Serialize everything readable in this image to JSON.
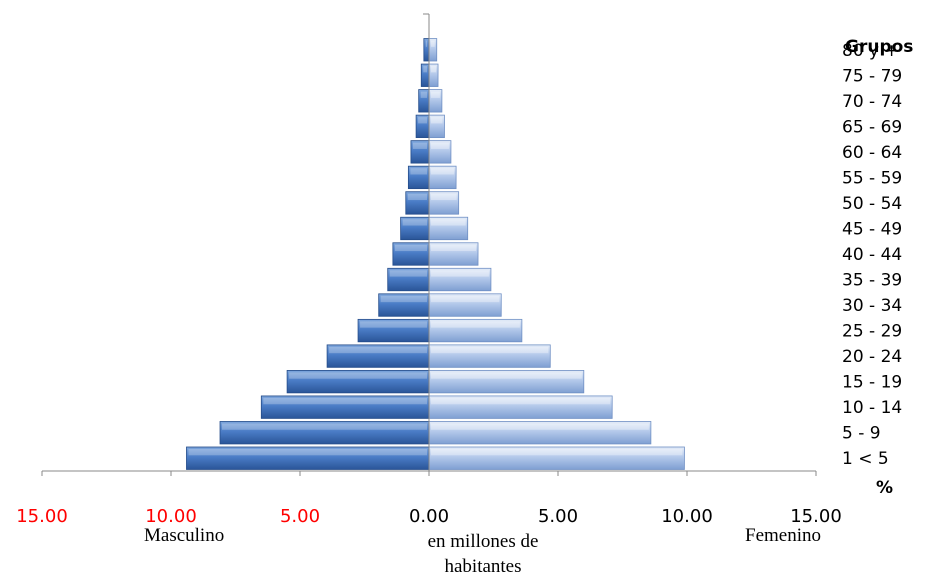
{
  "chart_data": {
    "type": "bar",
    "orientation": "horizontal",
    "categories": [
      "1 < 5",
      "5 - 9",
      "10 - 14",
      "15 - 19",
      "20 - 24",
      "25 - 29",
      "30 - 34",
      "35 - 39",
      "40 - 44",
      "45 - 49",
      "50 - 54",
      "55 - 59",
      "60 - 64",
      "65 - 69",
      "70 - 74",
      "75 - 79",
      "80 y +"
    ],
    "series": [
      {
        "name": "Masculino",
        "values": [
          9.4,
          8.1,
          6.5,
          5.5,
          3.95,
          2.75,
          1.95,
          1.6,
          1.4,
          1.1,
          0.9,
          0.8,
          0.7,
          0.5,
          0.4,
          0.3,
          0.2
        ]
      },
      {
        "name": "Femenino",
        "values": [
          9.9,
          8.6,
          7.1,
          6.0,
          4.7,
          3.6,
          2.8,
          2.4,
          1.9,
          1.5,
          1.15,
          1.05,
          0.85,
          0.6,
          0.5,
          0.35,
          0.3
        ]
      }
    ],
    "xlim": [
      -15,
      15
    ],
    "x_ticks": [
      "15.00",
      "10.00",
      "5.00",
      "0.00",
      "5.00",
      "10.00",
      "15.00"
    ],
    "x_tick_colors": [
      "#ff0000",
      "#ff0000",
      "#ff0000",
      "#000000",
      "#000000",
      "#000000",
      "#000000"
    ],
    "left_label": "Masculino",
    "right_label": "Femenino",
    "xlabel_line1": "en millones de",
    "xlabel_line2": "habitantes",
    "legend_title": "Grupos",
    "unit_label": "%",
    "colors": {
      "male_dark": "#2f5fa8",
      "male_light": "#7ea6dc",
      "female_dark": "#7f9fd2",
      "female_light": "#dce6f6"
    }
  }
}
